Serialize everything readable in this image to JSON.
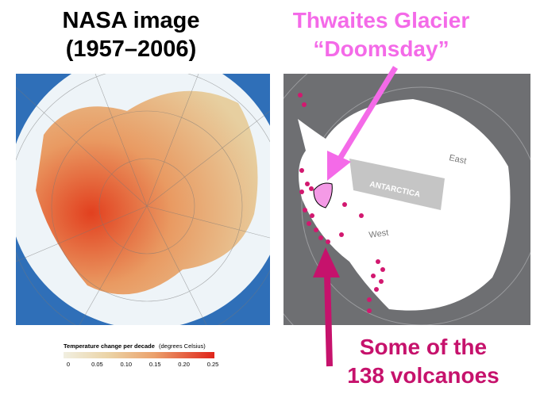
{
  "left_heading": {
    "line1": "NASA image",
    "line2": "(1957–2006)"
  },
  "right_heading": {
    "line1": "Thwaites Glacier",
    "line2": "“Doomsday”"
  },
  "colorbar": {
    "title": "Temperature change per decade",
    "unit": "(degrees Celsius)",
    "ticks": [
      "0",
      "0.05",
      "0.10",
      "0.15",
      "0.20",
      "0.25"
    ]
  },
  "map_labels": {
    "east": "East",
    "center": "ANTARCTICA",
    "west": "West"
  },
  "bottom_caption": {
    "line1": "Some of the",
    "line2": "138 volcanoes"
  }
}
